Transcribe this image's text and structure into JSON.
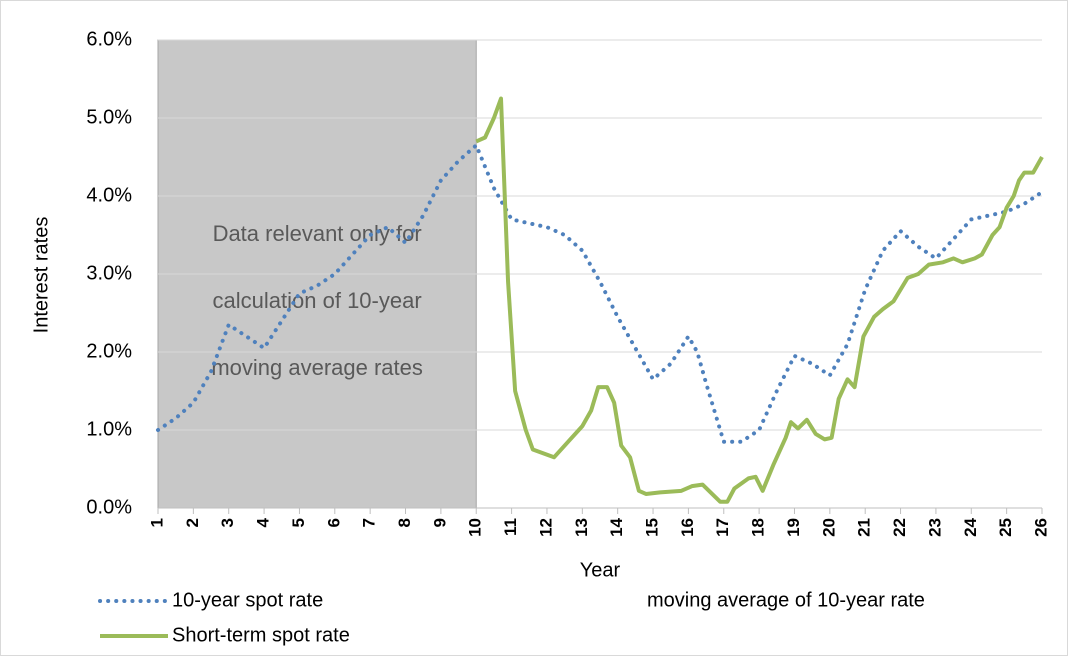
{
  "chart_data": {
    "type": "line",
    "y_label": "Interest rates",
    "x_label": "Year",
    "xlim": [
      1,
      26
    ],
    "xticks": [
      1,
      2,
      3,
      4,
      5,
      6,
      7,
      8,
      9,
      10,
      11,
      12,
      13,
      14,
      15,
      16,
      17,
      18,
      19,
      20,
      21,
      22,
      23,
      24,
      25,
      26
    ],
    "ylim": [
      0,
      6
    ],
    "yticks": [
      {
        "value": 0,
        "label": "0.0%"
      },
      {
        "value": 1,
        "label": "1.0%"
      },
      {
        "value": 2,
        "label": "2.0%"
      },
      {
        "value": 3,
        "label": "3.0%"
      },
      {
        "value": 4,
        "label": "4.0%"
      },
      {
        "value": 5,
        "label": "5.0%"
      },
      {
        "value": 6,
        "label": "6.0%"
      }
    ],
    "grid": true,
    "shaded_region": {
      "name": "moving average of 10-year rate",
      "xlim": [
        1,
        10
      ],
      "color": "#c8c8c8",
      "annotation": [
        "Data relevant only for",
        "calculation of 10-year",
        "moving average rates"
      ]
    },
    "series": [
      {
        "name": "10-year spot rate",
        "color": "#4f81bd",
        "style": "dotted",
        "x": [
          1,
          1.5,
          2,
          2.5,
          3,
          3.5,
          4,
          4.5,
          5,
          5.5,
          6,
          6.5,
          7,
          7.5,
          8,
          8.5,
          9,
          9.5,
          10,
          10.5,
          11,
          11.5,
          12,
          12.5,
          13,
          13.5,
          14,
          14.5,
          15,
          15.5,
          16,
          16.25,
          16.5,
          17,
          17.5,
          18,
          18.5,
          19,
          19.5,
          20,
          20.5,
          21,
          21.5,
          22,
          22.5,
          23,
          23.5,
          24,
          24.5,
          25,
          25.5,
          26
        ],
        "values": [
          1.0,
          1.15,
          1.35,
          1.75,
          2.35,
          2.2,
          2.05,
          2.4,
          2.75,
          2.85,
          3.0,
          3.25,
          3.5,
          3.6,
          3.4,
          3.75,
          4.2,
          4.45,
          4.65,
          4.1,
          3.7,
          3.65,
          3.6,
          3.5,
          3.3,
          2.9,
          2.45,
          2.05,
          1.65,
          1.85,
          2.2,
          2.0,
          1.6,
          0.85,
          0.85,
          1.0,
          1.5,
          1.95,
          1.85,
          1.7,
          2.1,
          2.8,
          3.3,
          3.55,
          3.35,
          3.2,
          3.45,
          3.7,
          3.75,
          3.8,
          3.9,
          4.05
        ]
      },
      {
        "name": "Short-term spot rate",
        "color": "#9bbb59",
        "style": "solid",
        "x": [
          10,
          10.25,
          10.5,
          10.7,
          10.9,
          11.1,
          11.4,
          11.6,
          12.2,
          12.6,
          13,
          13.25,
          13.45,
          13.7,
          13.9,
          14.1,
          14.35,
          14.6,
          14.8,
          15.2,
          15.8,
          16.1,
          16.4,
          16.9,
          17.1,
          17.3,
          17.7,
          17.9,
          18.1,
          18.4,
          18.75,
          18.9,
          19.1,
          19.35,
          19.6,
          19.85,
          20.05,
          20.25,
          20.5,
          20.7,
          20.95,
          21.25,
          21.5,
          21.8,
          22.2,
          22.5,
          22.8,
          23.2,
          23.5,
          23.75,
          24.1,
          24.3,
          24.6,
          24.8,
          25.0,
          25.2,
          25.35,
          25.5,
          25.75,
          26
        ],
        "values": [
          4.7,
          4.75,
          5.0,
          5.25,
          2.9,
          1.5,
          1.0,
          0.75,
          0.65,
          0.85,
          1.05,
          1.25,
          1.55,
          1.55,
          1.35,
          0.8,
          0.65,
          0.22,
          0.18,
          0.2,
          0.22,
          0.28,
          0.3,
          0.08,
          0.08,
          0.25,
          0.38,
          0.4,
          0.22,
          0.55,
          0.9,
          1.1,
          1.02,
          1.13,
          0.95,
          0.88,
          0.9,
          1.4,
          1.65,
          1.55,
          2.2,
          2.45,
          2.55,
          2.65,
          2.95,
          3.0,
          3.12,
          3.15,
          3.2,
          3.15,
          3.2,
          3.25,
          3.5,
          3.6,
          3.85,
          4.0,
          4.2,
          4.3,
          4.3,
          4.5
        ]
      }
    ]
  }
}
